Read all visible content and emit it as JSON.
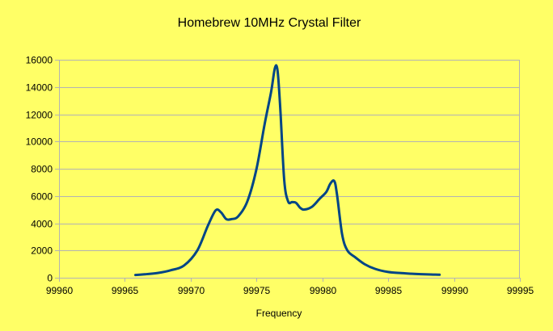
{
  "chart_data": {
    "type": "line",
    "title": "Homebrew 10MHz Crystal Filter",
    "xlabel": "Frequency",
    "ylabel": "",
    "xlim": [
      99960,
      99995
    ],
    "ylim": [
      0,
      16000
    ],
    "x_ticks": [
      99960,
      99965,
      99970,
      99975,
      99980,
      99985,
      99990,
      99995
    ],
    "y_ticks": [
      0,
      2000,
      4000,
      6000,
      8000,
      10000,
      12000,
      14000,
      16000
    ],
    "grid": true,
    "legend": "none",
    "colors": {
      "background": "#ffff66",
      "series": "#004586",
      "grid": "#b3b3b3"
    },
    "series": [
      {
        "x": [
          99965.8,
          99966.5,
          99967.5,
          99968.5,
          99969.5,
          99970.5,
          99971.3,
          99971.9,
          99972.3,
          99972.7,
          99973.1,
          99973.6,
          99974.3,
          99975.0,
          99975.6,
          99976.1,
          99976.4,
          99976.6,
          99976.8,
          99977.1,
          99977.4,
          99977.7,
          99978.0,
          99978.3,
          99978.6,
          99979.2,
          99979.8,
          99980.3,
          99980.6,
          99980.9,
          99981.1,
          99981.5,
          99981.9,
          99982.5,
          99983.2,
          99984.0,
          99985.0,
          99986.0,
          99987.0,
          99988.0,
          99988.9
        ],
        "values": [
          200,
          250,
          350,
          550,
          900,
          2000,
          3800,
          4950,
          4800,
          4300,
          4300,
          4500,
          5600,
          8000,
          11200,
          13600,
          15400,
          15200,
          12500,
          7200,
          5600,
          5550,
          5500,
          5150,
          5000,
          5200,
          5800,
          6300,
          6900,
          7100,
          6200,
          3200,
          2000,
          1500,
          1000,
          650,
          420,
          340,
          280,
          240,
          220
        ]
      }
    ]
  }
}
